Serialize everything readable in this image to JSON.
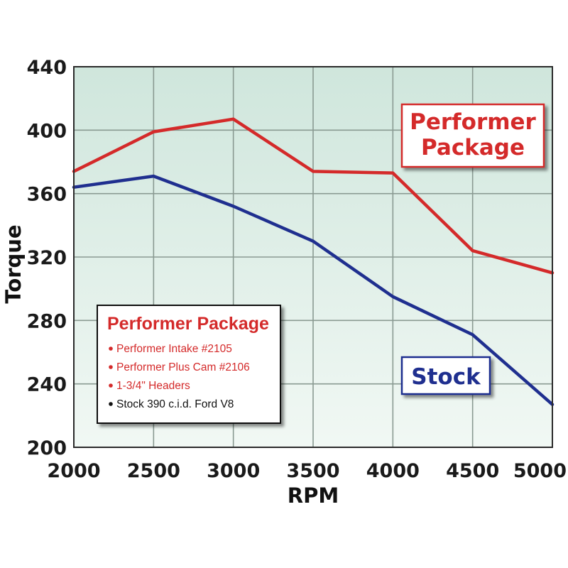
{
  "chart_data": {
    "type": "line",
    "xlabel": "RPM",
    "ylabel": "Torque",
    "x": [
      2000,
      2500,
      3000,
      3500,
      4000,
      4500,
      5000
    ],
    "xlim": [
      2000,
      5000
    ],
    "ylim": [
      200,
      440
    ],
    "yticks": [
      200,
      240,
      280,
      320,
      360,
      400,
      440
    ],
    "xticks": [
      2000,
      2500,
      3000,
      3500,
      4000,
      4500,
      5000
    ],
    "grid": true,
    "series": [
      {
        "name": "Performer Package",
        "label_lines": [
          "Performer",
          "Package"
        ],
        "color": "#d42a2a",
        "values": [
          374,
          399,
          407,
          374,
          373,
          324,
          310
        ]
      },
      {
        "name": "Stock",
        "label_lines": [
          "Stock"
        ],
        "color": "#1f2f8f",
        "values": [
          364,
          371,
          352,
          330,
          295,
          271,
          227
        ]
      }
    ],
    "legend": {
      "placement": "bottom-left",
      "title": "Performer Package",
      "items": [
        {
          "text": "Performer Intake #2105",
          "color": "#d42a2a"
        },
        {
          "text": "Performer Plus Cam #2106",
          "color": "#d42a2a"
        },
        {
          "text": "1-3/4\" Headers",
          "color": "#d42a2a"
        },
        {
          "text": "Stock 390 c.i.d. Ford V8",
          "color": "#111111"
        }
      ]
    },
    "colors": {
      "plot_bg_top": "#cfe6dc",
      "plot_bg_bottom": "#f1f8f4",
      "grid": "#8a9a92",
      "frame": "#2a2a2a"
    }
  }
}
